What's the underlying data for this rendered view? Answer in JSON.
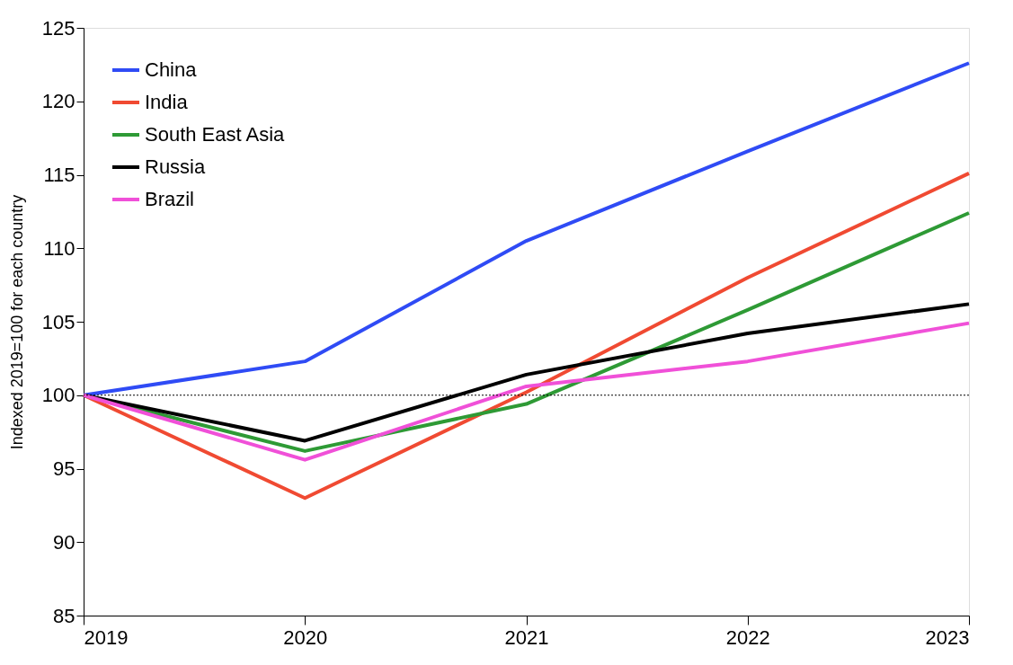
{
  "chart_data": {
    "type": "line",
    "ylabel": "Indexed  2019=100 for each country",
    "x": [
      2019,
      2020,
      2021,
      2022,
      2023
    ],
    "xlim": [
      2019,
      2023
    ],
    "xticks": [
      2019,
      2020,
      2021,
      2022,
      2023
    ],
    "ylim": [
      85,
      125
    ],
    "yticks": [
      85,
      90,
      95,
      100,
      105,
      110,
      115,
      120,
      125
    ],
    "series": [
      {
        "name": "China",
        "color": "#2f4bf5",
        "values": [
          100,
          102.3,
          110.5,
          116.6,
          122.6
        ]
      },
      {
        "name": "India",
        "color": "#f04a32",
        "values": [
          100,
          93.0,
          100.2,
          108.0,
          115.1
        ]
      },
      {
        "name": "South East Asia",
        "color": "#2e9a35",
        "values": [
          100,
          96.2,
          99.4,
          105.8,
          112.4
        ]
      },
      {
        "name": "Russia",
        "color": "#000000",
        "values": [
          100,
          96.9,
          101.4,
          104.2,
          106.2
        ]
      },
      {
        "name": "Brazil",
        "color": "#f050d8",
        "values": [
          100,
          95.6,
          100.6,
          102.3,
          104.9
        ]
      }
    ],
    "ref_lines": [
      {
        "axis": "y",
        "value": 100,
        "color": "#000000",
        "line_style": "dotted"
      }
    ],
    "legend": "top left",
    "grid": false,
    "marker": "none",
    "line_style": "solid"
  }
}
